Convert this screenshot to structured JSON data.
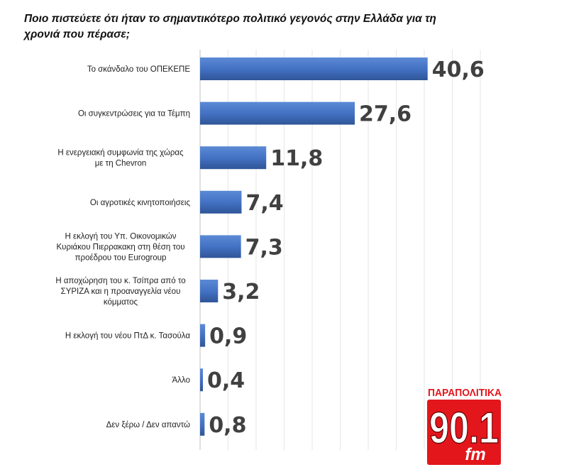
{
  "title": "Ποιο πιστεύετε ότι ήταν το σημαντικότερο πολιτικό γεγονός στην Ελλάδα για τη χρονιά που πέρασε;",
  "chart_data": {
    "type": "bar",
    "orientation": "horizontal",
    "categories": [
      [
        "Το σκάνδαλο του ΟΠΕΚΕΠΕ"
      ],
      [
        "Οι συγκεντρώσεις για τα Τέμπη"
      ],
      [
        "Η ενεργειακή συμφωνία της χώρας",
        "με τη Chevron"
      ],
      [
        "Οι αγροτικές κινητοποιήσεις"
      ],
      [
        "Η εκλογή του Υπ. Οικονομικών",
        "Κυριάκου Πιερρακακη στη θέση του",
        "προέδρου του Eurogroup"
      ],
      [
        "Η αποχώρηση του κ. Τσίπρα από το",
        "ΣΥΡΙΖΑ και η προαναγγελία νέου",
        "κόμματος"
      ],
      [
        "Η εκλογή του νέου ΠτΔ κ. Τασούλα"
      ],
      [
        "Άλλο"
      ],
      [
        "Δεν ξέρω / Δεν απαντώ"
      ]
    ],
    "values": [
      40.6,
      27.6,
      11.8,
      7.4,
      7.3,
      3.2,
      0.9,
      0.4,
      0.8
    ],
    "value_labels": [
      "40,6",
      "27,6",
      "11,8",
      "7,4",
      "7,3",
      "3,2",
      "0,9",
      "0,4",
      "0,8"
    ],
    "xlim": [
      0,
      50
    ],
    "grid": true,
    "bar_color": "#4472C4",
    "label_color": "#404040"
  },
  "logo": {
    "brand": "ΠΑΡΑΠΟΛΙΤΙΚΑ",
    "frequency": "90.1",
    "unit": "fm",
    "brand_color": "#e3161b"
  }
}
